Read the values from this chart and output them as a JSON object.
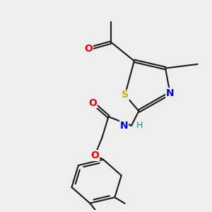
{
  "background_color": "#eeeeee",
  "bond_color": "#1a1a1a",
  "bond_width": 1.5,
  "atom_colors": {
    "S": "#ccaa00",
    "N": "#0000ee",
    "O": "#ee0000",
    "NH": "#0000ee",
    "H": "#009999",
    "C": "#1a1a1a"
  },
  "font_size_heavy": 9,
  "font_size_methyl": 8
}
